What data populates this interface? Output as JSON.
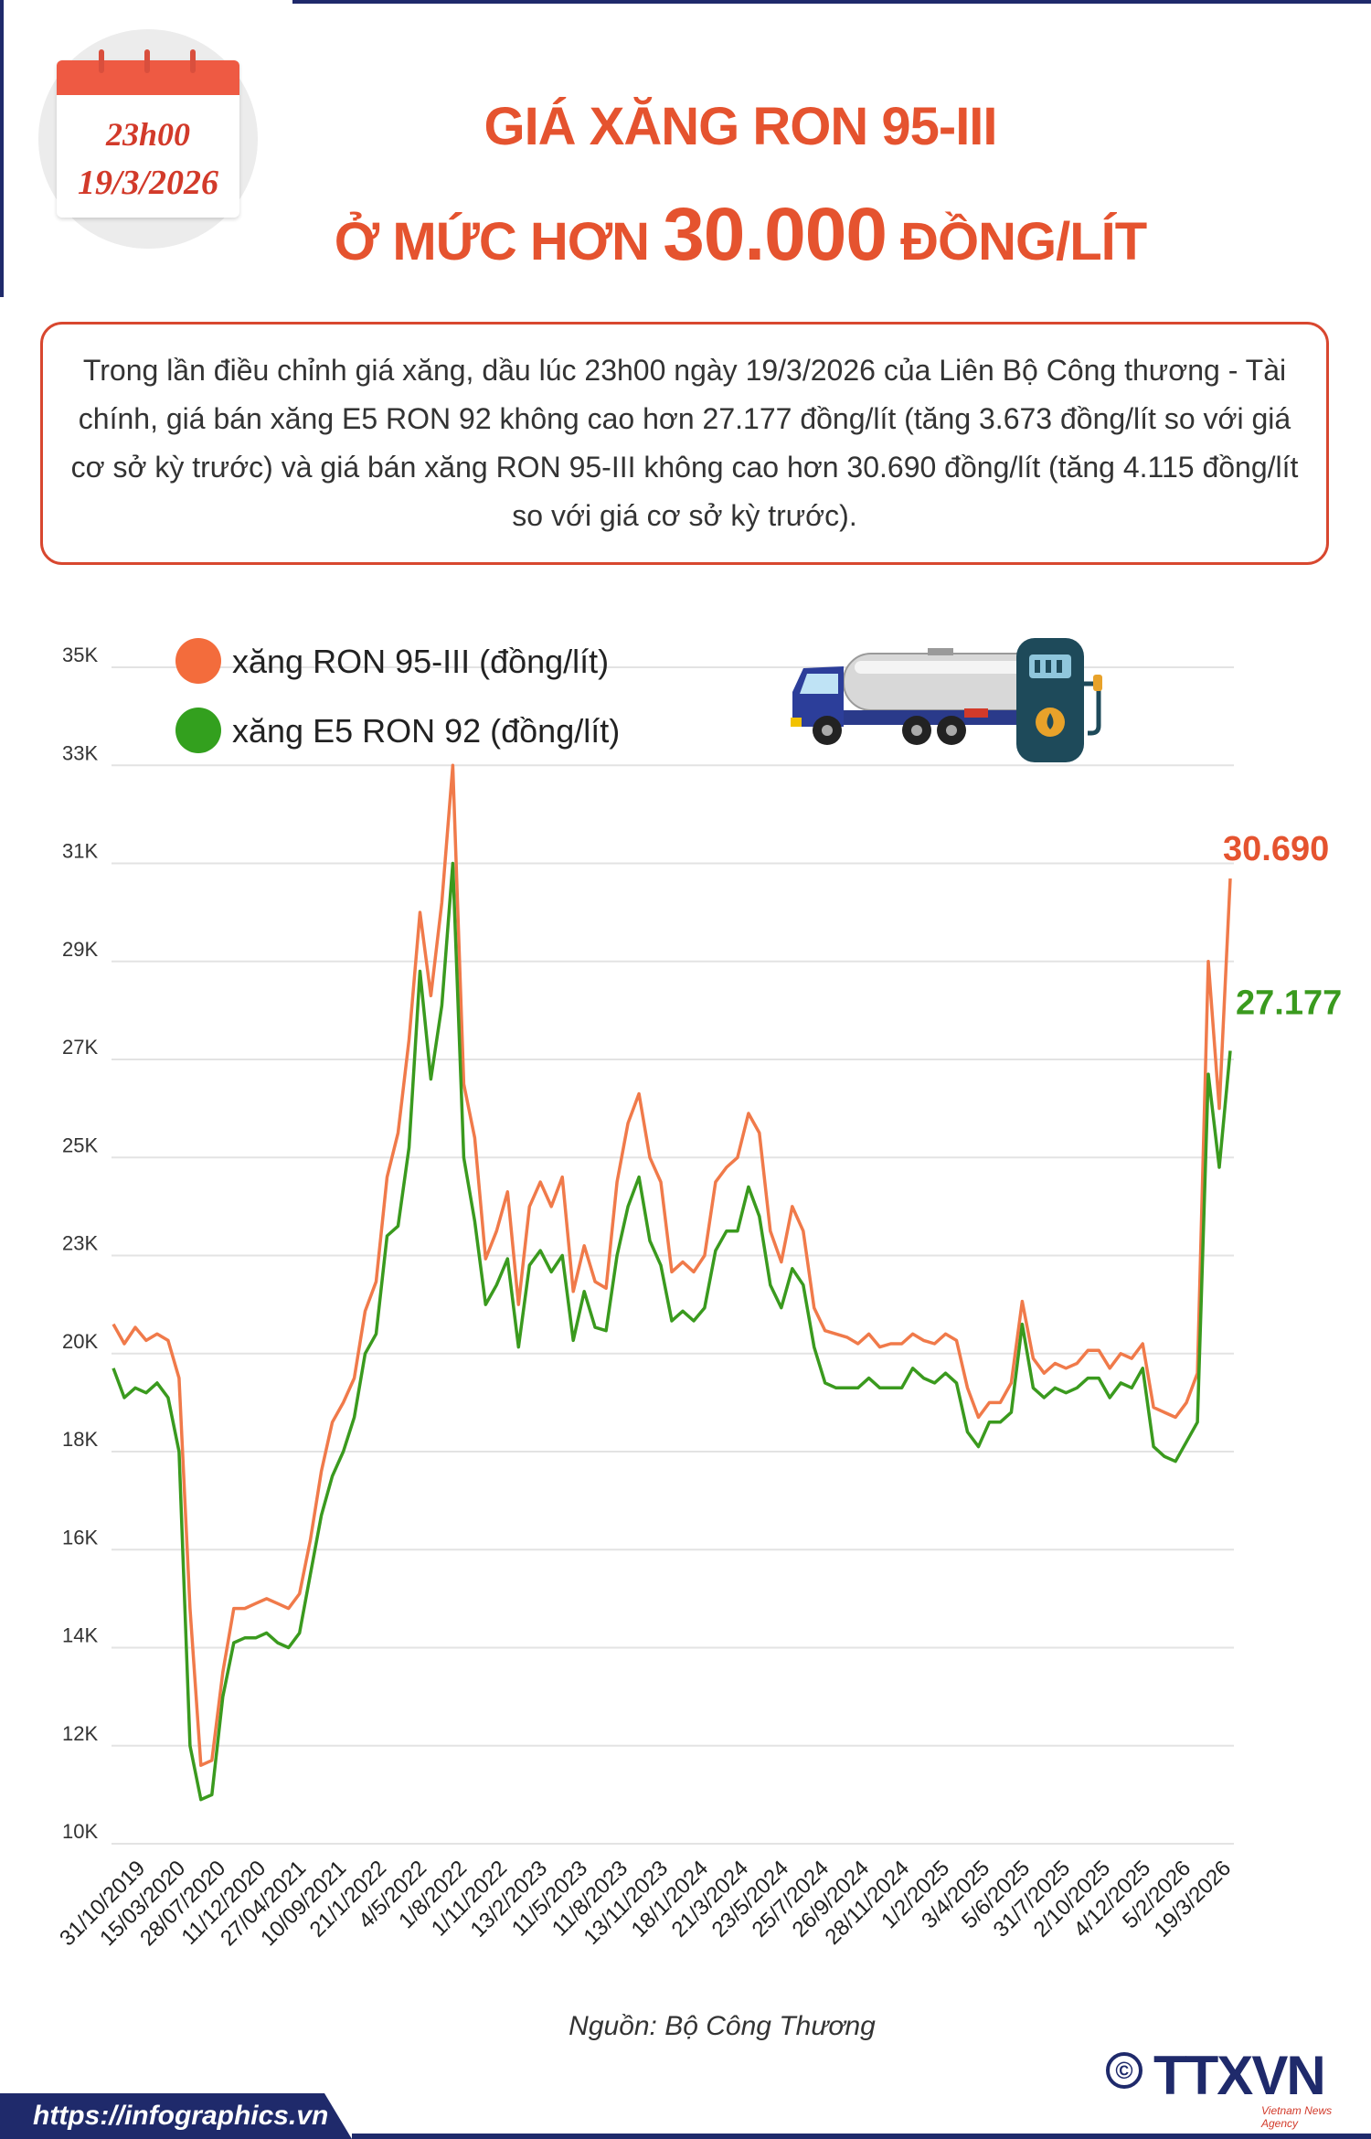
{
  "header": {
    "date_time": "23h00",
    "date": "19/3/2026",
    "title_line1": "GIÁ XĂNG RON 95-III",
    "title_line2_pre": "Ở MỨC HƠN ",
    "title_line2_big": "30.000",
    "title_line2_post": " ĐỒNG/LÍT"
  },
  "summary": "Trong lần điều chỉnh giá xăng, dầu lúc 23h00 ngày 19/3/2026 của Liên Bộ Công thương - Tài chính, giá bán xăng E5 RON 92 không cao hơn 27.177 đồng/lít (tăng 3.673 đồng/lít so với giá cơ sở kỳ trước) và giá bán xăng RON 95-III không cao hơn 30.690 đồng/lít (tăng 4.115 đồng/lít so với giá cơ sở kỳ trước).",
  "chart_data": {
    "type": "line",
    "title": "",
    "xlabel": "",
    "ylabel": "",
    "ylim": [
      10000,
      35000
    ],
    "y_ticks": [
      10000,
      12000,
      14000,
      16000,
      18000,
      20000,
      23000,
      25000,
      27000,
      29000,
      31000,
      33000,
      35000
    ],
    "y_tick_labels": [
      "10K",
      "12K",
      "14K",
      "16K",
      "18K",
      "20K",
      "23K",
      "25K",
      "27K",
      "29K",
      "31K",
      "33K",
      "35K"
    ],
    "x_tick_labels": [
      "31/10/2019",
      "15/03/2020",
      "28/07/2020",
      "11/12/2020",
      "27/04/2021",
      "10/09/2021",
      "21/1/2022",
      "4/5/2022",
      "1/8/2022",
      "1/11/2022",
      "13/2/2023",
      "11/5/2023",
      "11/8/2023",
      "13/11/2023",
      "18/1/2024",
      "21/3/2024",
      "23/5/2024",
      "25/7/2024",
      "26/9/2024",
      "28/11/2024",
      "1/2/2025",
      "3/4/2025",
      "5/6/2025",
      "31/7/2025",
      "2/10/2025",
      "4/12/2025",
      "5/2/2026",
      "19/3/2026"
    ],
    "grid": true,
    "legend_position": "top-left",
    "series": [
      {
        "name": "xăng RON 95-III (đồng/lít)",
        "color": "#f07a4a",
        "end_label": "30.690",
        "values": [
          20900,
          20300,
          20800,
          20400,
          20600,
          20400,
          19500,
          14800,
          11600,
          11700,
          13500,
          14800,
          14800,
          14900,
          15000,
          14900,
          14800,
          15100,
          16200,
          17600,
          18600,
          19000,
          19500,
          21300,
          22200,
          24600,
          25500,
          27400,
          30000,
          28300,
          30200,
          33000,
          26500,
          25400,
          22900,
          23500,
          24300,
          21500,
          24000,
          24500,
          24000,
          24600,
          21900,
          23200,
          22200,
          22000,
          24500,
          25700,
          26300,
          25000,
          24500,
          22500,
          22800,
          22500,
          23000,
          24500,
          24800,
          25000,
          25900,
          25500,
          23500,
          22800,
          24000,
          23500,
          21400,
          20700,
          20600,
          20500,
          20300,
          20600,
          20200,
          20300,
          20300,
          20600,
          20400,
          20300,
          20600,
          20400,
          19300,
          18700,
          19000,
          19000,
          19400,
          21600,
          19900,
          19600,
          19800,
          19700,
          19800,
          20100,
          20100,
          19700,
          20000,
          19900,
          20300,
          18900,
          18800,
          18700,
          19000,
          19600,
          29000,
          26000,
          30690
        ]
      },
      {
        "name": "xăng E5 RON 92 (đồng/lít)",
        "color": "#3a9a1e",
        "end_label": "27.177",
        "values": [
          19700,
          19100,
          19300,
          19200,
          19400,
          19100,
          18000,
          12000,
          10900,
          11000,
          13000,
          14100,
          14200,
          14200,
          14300,
          14100,
          14000,
          14300,
          15500,
          16700,
          17500,
          18000,
          18700,
          20000,
          20600,
          23400,
          23600,
          25200,
          28800,
          26600,
          28100,
          31000,
          25000,
          23700,
          21500,
          22100,
          22900,
          20200,
          22700,
          23100,
          22500,
          23000,
          20400,
          21900,
          20800,
          20700,
          23000,
          24000,
          24600,
          23300,
          22700,
          21000,
          21300,
          21000,
          21400,
          23100,
          23500,
          23500,
          24400,
          23800,
          22100,
          21400,
          22600,
          22100,
          20200,
          19400,
          19300,
          19300,
          19300,
          19500,
          19300,
          19300,
          19300,
          19700,
          19500,
          19400,
          19600,
          19400,
          18400,
          18100,
          18600,
          18600,
          18800,
          20900,
          19300,
          19100,
          19300,
          19200,
          19300,
          19500,
          19500,
          19100,
          19400,
          19300,
          19700,
          18100,
          17900,
          17800,
          18200,
          18600,
          26700,
          24800,
          27177
        ]
      }
    ]
  },
  "source": "Nguồn: Bộ Công Thương",
  "footer": {
    "url": "https://infographics.vn",
    "logo": "TTXVN",
    "logo_sub": "Vietnam News Agency",
    "copyright_symbol": "©"
  }
}
